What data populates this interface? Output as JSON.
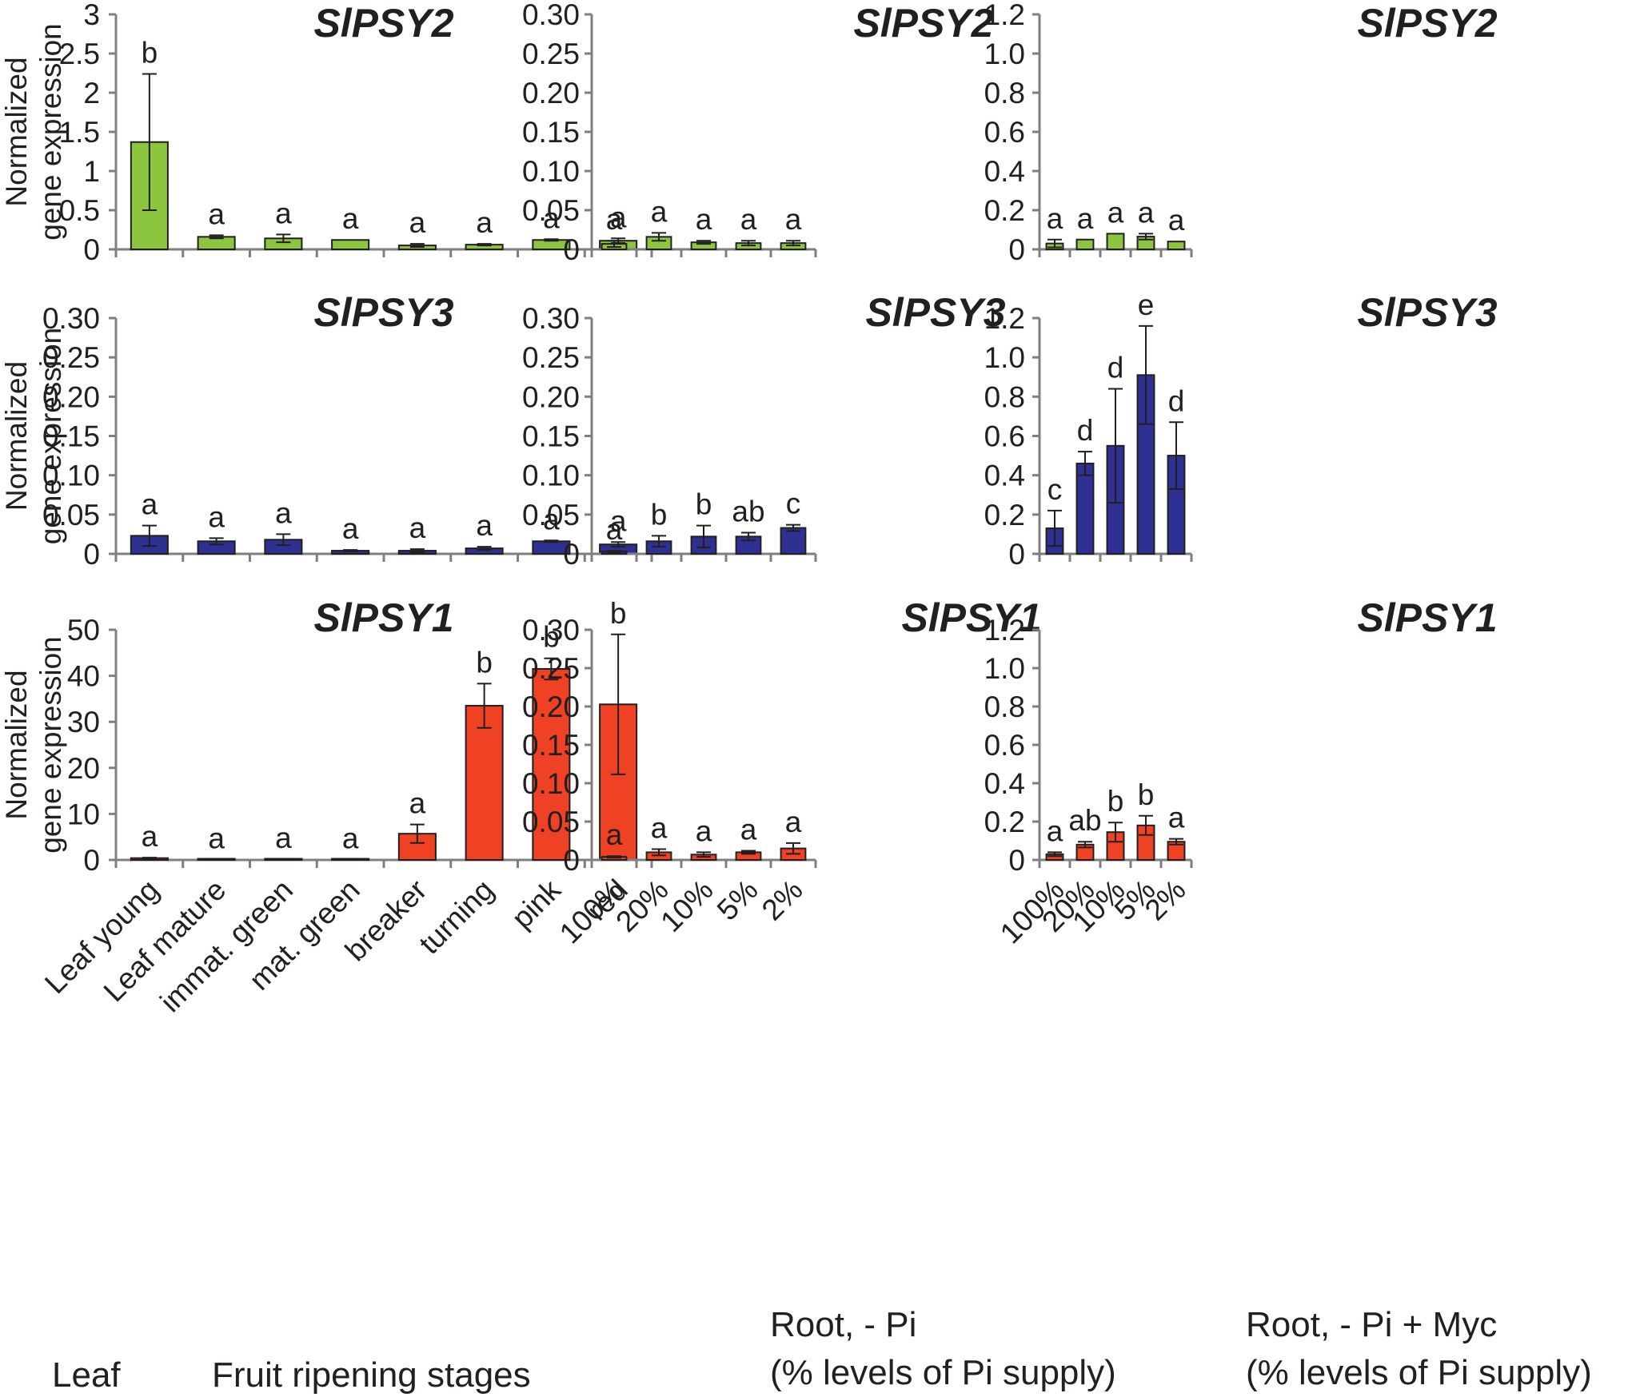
{
  "figure": {
    "y_axis_label_line1": "Normalized",
    "y_axis_label_line2": "gene expression",
    "leaf_categories": [
      "Leaf young",
      "Leaf mature",
      "immat. green",
      "mat. green",
      "breaker",
      "turning",
      "pink",
      "red"
    ],
    "pi_categories": [
      "100%",
      "20%",
      "10%",
      "5%",
      "2%"
    ],
    "captions": {
      "leaf": "Leaf",
      "fruit": "Fruit ripening stages",
      "root_pi_line1": "Root, - Pi",
      "root_pi_line2": "(% levels of Pi supply)",
      "root_myc_line1": "Root, - Pi  + Myc",
      "root_myc_line2": "(% levels of Pi supply)"
    },
    "colors": {
      "green": "#8cc63f",
      "blue": "#2e3192",
      "red": "#ef4123",
      "axis": "#7f7f7f",
      "text": "#231f20"
    }
  },
  "chart_data": [
    {
      "type": "bar",
      "title": "SlPSY2",
      "group": "leaf_fruit",
      "color": "green",
      "categories": [
        "Leaf young",
        "Leaf mature",
        "immat. green",
        "mat. green",
        "breaker",
        "turning",
        "pink",
        "red"
      ],
      "values": [
        1.37,
        0.16,
        0.14,
        0.12,
        0.05,
        0.06,
        0.12,
        0.11
      ],
      "errors": [
        0.87,
        0.02,
        0.05,
        0.0,
        0.02,
        0.01,
        0.01,
        0.03
      ],
      "labels": [
        "b",
        "a",
        "a",
        "a",
        "a",
        "a",
        "a",
        "a"
      ],
      "ylim": [
        0,
        3
      ],
      "yticks": [
        "0",
        "0.5",
        "1",
        "1.5",
        "2",
        "2.5",
        "3"
      ],
      "ylabel": "Normalized gene expression"
    },
    {
      "type": "bar",
      "title": "SlPSY2",
      "group": "root_pi",
      "color": "green",
      "categories": [
        "100%",
        "20%",
        "10%",
        "5%",
        "2%"
      ],
      "values": [
        0.007,
        0.016,
        0.009,
        0.008,
        0.008
      ],
      "errors": [
        0.004,
        0.005,
        0.002,
        0.003,
        0.003
      ],
      "labels": [
        "a",
        "a",
        "a",
        "a",
        "a"
      ],
      "ylim": [
        0,
        0.3
      ],
      "yticks": [
        "0",
        "0.05",
        "0.10",
        "0.15",
        "0.20",
        "0.25",
        "0.30"
      ],
      "ylabel": ""
    },
    {
      "type": "bar",
      "title": "SlPSY2",
      "group": "root_myc",
      "color": "green",
      "categories": [
        "100%",
        "20%",
        "10%",
        "5%",
        "2%"
      ],
      "values": [
        0.03,
        0.05,
        0.08,
        0.065,
        0.04
      ],
      "errors": [
        0.02,
        0.0,
        0.0,
        0.015,
        0.0
      ],
      "labels": [
        "a",
        "a",
        "a",
        "a",
        "a"
      ],
      "ylim": [
        0,
        1.2
      ],
      "yticks": [
        "0",
        "0.2",
        "0.4",
        "0.6",
        "0.8",
        "1.0",
        "1.2"
      ],
      "ylabel": ""
    },
    {
      "type": "bar",
      "title": "SlPSY3",
      "group": "leaf_fruit",
      "color": "blue",
      "categories": [
        "Leaf young",
        "Leaf mature",
        "immat. green",
        "mat. green",
        "breaker",
        "turning",
        "pink",
        "red"
      ],
      "values": [
        0.023,
        0.016,
        0.018,
        0.004,
        0.004,
        0.007,
        0.016,
        0.012
      ],
      "errors": [
        0.013,
        0.004,
        0.007,
        0.001,
        0.002,
        0.002,
        0.001,
        0.003
      ],
      "labels": [
        "a",
        "a",
        "a",
        "a",
        "a",
        "a",
        "a",
        "a"
      ],
      "ylim": [
        0,
        0.3
      ],
      "yticks": [
        "0",
        "0.05",
        "0.10",
        "0.15",
        "0.20",
        "0.25",
        "0.30"
      ],
      "ylabel": "Normalized gene expression"
    },
    {
      "type": "bar",
      "title": "SlPSY3",
      "group": "root_pi",
      "color": "blue",
      "categories": [
        "100%",
        "20%",
        "10%",
        "5%",
        "2%"
      ],
      "values": [
        0.003,
        0.016,
        0.022,
        0.022,
        0.033
      ],
      "errors": [
        0.001,
        0.007,
        0.014,
        0.005,
        0.004
      ],
      "labels": [
        "a",
        "b",
        "b",
        "ab",
        "c"
      ],
      "ylim": [
        0,
        0.3
      ],
      "yticks": [
        "0",
        "0.05",
        "0.10",
        "0.15",
        "0.20",
        "0.25",
        "0.30"
      ],
      "ylabel": ""
    },
    {
      "type": "bar",
      "title": "SlPSY3",
      "group": "root_myc",
      "color": "blue",
      "categories": [
        "100%",
        "20%",
        "10%",
        "5%",
        "2%"
      ],
      "values": [
        0.13,
        0.46,
        0.55,
        0.91,
        0.5
      ],
      "errors": [
        0.09,
        0.06,
        0.29,
        0.25,
        0.17
      ],
      "labels": [
        "c",
        "d",
        "d",
        "e",
        "d"
      ],
      "ylim": [
        0,
        1.2
      ],
      "yticks": [
        "0",
        "0.2",
        "0.4",
        "0.6",
        "0.8",
        "1.0",
        "1.2"
      ],
      "ylabel": ""
    },
    {
      "type": "bar",
      "title": "SlPSY1",
      "group": "leaf_fruit",
      "color": "red",
      "categories": [
        "Leaf young",
        "Leaf mature",
        "immat. green",
        "mat. green",
        "breaker",
        "turning",
        "pink",
        "red"
      ],
      "values": [
        0.4,
        0.1,
        0.2,
        0.1,
        5.7,
        33.5,
        41.5,
        33.8
      ],
      "errors": [
        0.1,
        0.0,
        0.0,
        0.0,
        2.0,
        4.8,
        2.3,
        15.2
      ],
      "labels": [
        "a",
        "a",
        "a",
        "a",
        "a",
        "b",
        "b",
        "b"
      ],
      "ylim": [
        0,
        50
      ],
      "yticks": [
        "0",
        "10",
        "20",
        "30",
        "40",
        "50"
      ],
      "ylabel": "Normalized gene expression"
    },
    {
      "type": "bar",
      "title": "SlPSY1",
      "group": "root_pi",
      "color": "red",
      "categories": [
        "100%",
        "20%",
        "10%",
        "5%",
        "2%"
      ],
      "values": [
        0.004,
        0.01,
        0.007,
        0.01,
        0.015
      ],
      "errors": [
        0.001,
        0.004,
        0.003,
        0.002,
        0.007
      ],
      "labels": [
        "a",
        "a",
        "a",
        "a",
        "a"
      ],
      "ylim": [
        0,
        0.3
      ],
      "yticks": [
        "0",
        "0.05",
        "0.10",
        "0.15",
        "0.20",
        "0.25",
        "0.30"
      ],
      "ylabel": ""
    },
    {
      "type": "bar",
      "title": "SlPSY1",
      "group": "root_myc",
      "color": "red",
      "categories": [
        "100%",
        "20%",
        "10%",
        "5%",
        "2%"
      ],
      "values": [
        0.03,
        0.08,
        0.145,
        0.18,
        0.095
      ],
      "errors": [
        0.01,
        0.015,
        0.05,
        0.05,
        0.015
      ],
      "labels": [
        "a",
        "ab",
        "b",
        "b",
        "a"
      ],
      "ylim": [
        0,
        1.2
      ],
      "yticks": [
        "0",
        "0.2",
        "0.4",
        "0.6",
        "0.8",
        "1.0",
        "1.2"
      ],
      "ylabel": ""
    }
  ]
}
